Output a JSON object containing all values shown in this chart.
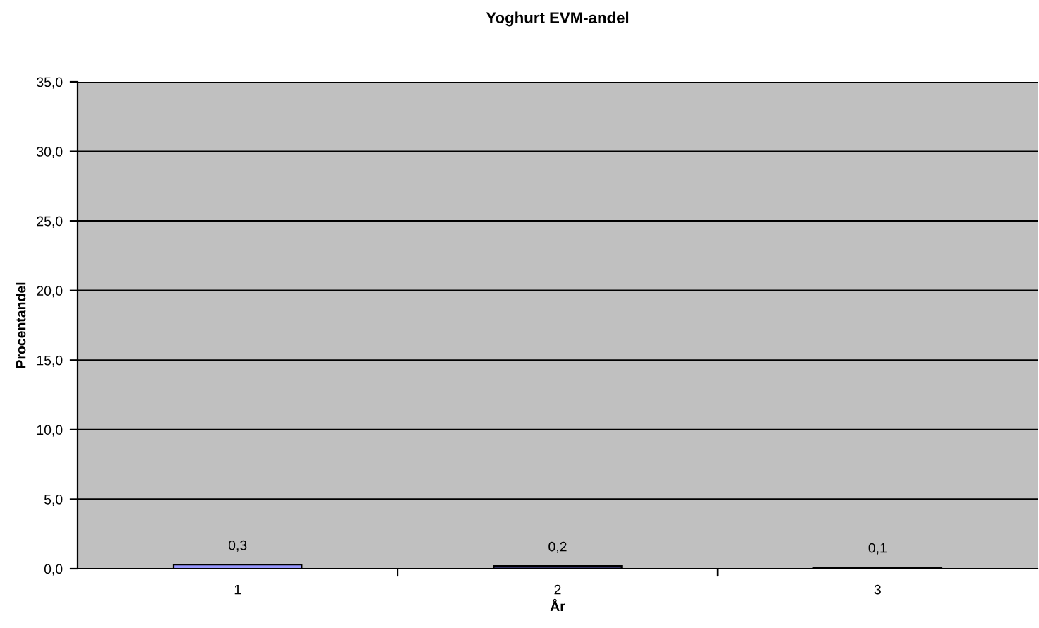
{
  "chart_data": {
    "type": "bar",
    "title": "Yoghurt EVM-andel",
    "xlabel": "År",
    "ylabel": "Procentandel",
    "categories": [
      "1",
      "2",
      "3"
    ],
    "values": [
      0.3,
      0.2,
      0.1
    ],
    "colors": [
      "#9999ff",
      "#333366",
      "#1a1a1a"
    ],
    "ylim": [
      0,
      35
    ],
    "yticks": [
      {
        "value": 0,
        "label": "0,0"
      },
      {
        "value": 5,
        "label": "5,0"
      },
      {
        "value": 10,
        "label": "10,0"
      },
      {
        "value": 15,
        "label": "15,0"
      },
      {
        "value": 20,
        "label": "20,0"
      },
      {
        "value": 25,
        "label": "25,0"
      },
      {
        "value": 30,
        "label": "30,0"
      },
      {
        "value": 35,
        "label": "35,0"
      }
    ],
    "value_labels": [
      "0,3",
      "0,2",
      "0,1"
    ],
    "grid": "y",
    "legend": false
  }
}
